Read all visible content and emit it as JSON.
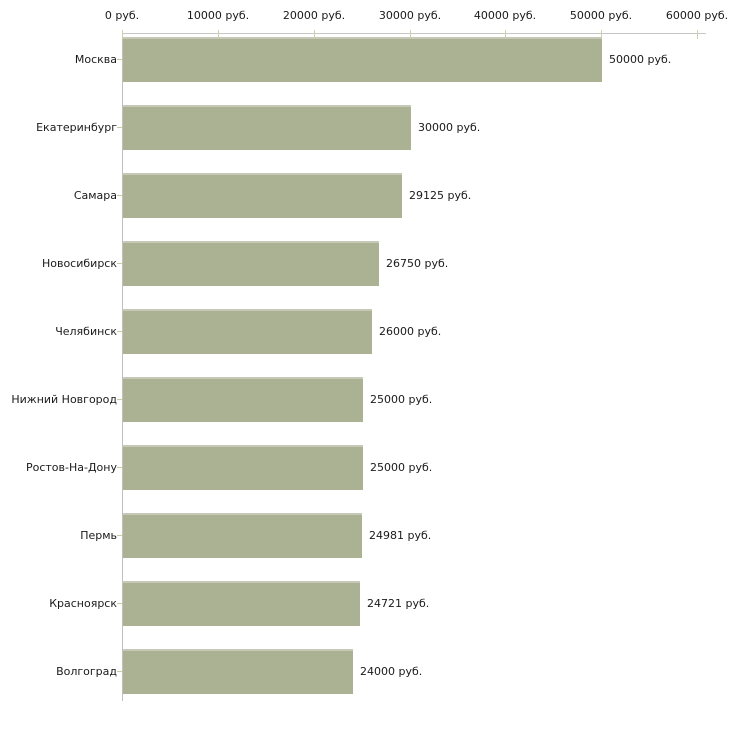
{
  "chart_data": {
    "type": "bar",
    "orientation": "horizontal",
    "title": "",
    "xlabel": "",
    "ylabel": "",
    "unit": "руб.",
    "grid": "off",
    "legend": "off",
    "x_axis": {
      "range": [
        0,
        60000
      ],
      "ticks": [
        {
          "value": 0,
          "label": "0 руб."
        },
        {
          "value": 10000,
          "label": "10000 руб."
        },
        {
          "value": 20000,
          "label": "20000 руб."
        },
        {
          "value": 30000,
          "label": "30000 руб."
        },
        {
          "value": 40000,
          "label": "40000 руб."
        },
        {
          "value": 50000,
          "label": "50000 руб."
        },
        {
          "value": 60000,
          "label": "60000 руб."
        }
      ]
    },
    "categories": [
      "Москва",
      "Екатеринбург",
      "Самара",
      "Новосибирск",
      "Челябинск",
      "Нижний Новгород",
      "Ростов-На-Дону",
      "Пермь",
      "Красноярск",
      "Волгоград"
    ],
    "values": [
      50000,
      30000,
      29125,
      26750,
      26000,
      25000,
      25000,
      24981,
      24721,
      24000
    ],
    "value_labels": [
      "50000 руб.",
      "30000 руб.",
      "29125 руб.",
      "26750 руб.",
      "26000 руб.",
      "25000 руб.",
      "25000 руб.",
      "24981 руб.",
      "24721 руб.",
      "24000 руб."
    ],
    "colors": {
      "bar": "#abb294",
      "bar_top_highlight": "#c6c9b6",
      "axis_line": "#c6c6c6",
      "value_tick": "#cfd0a8",
      "category_tick": "#c9cba5",
      "text": "#1a1a1a",
      "background": "#ffffff"
    }
  }
}
